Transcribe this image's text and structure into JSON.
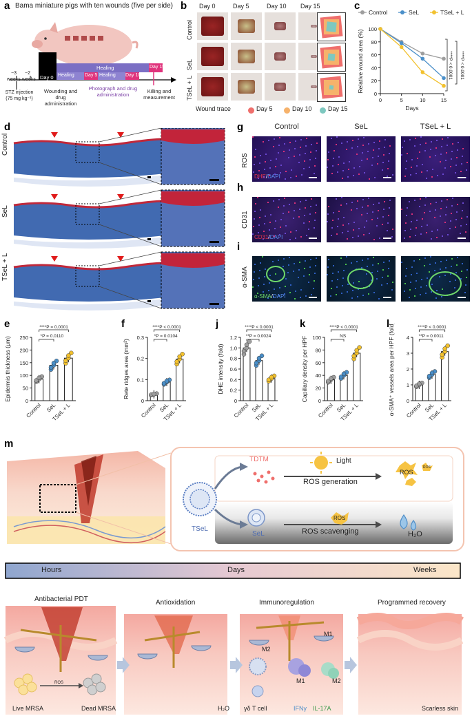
{
  "panel_letters": {
    "a": "a",
    "b": "b",
    "c": "c",
    "d": "d",
    "e": "e",
    "f": "f",
    "g": "g",
    "h": "h",
    "i": "i",
    "j": "j",
    "k": "k",
    "l": "l",
    "m": "m"
  },
  "panel_a": {
    "title": "Bama miniature pigs with ten wounds (five per side)",
    "week_minus3": "−3",
    "weeks_label1": "weeks",
    "week_minus2": "−2",
    "weeks_label2": "weeks",
    "day0": "Day 0",
    "healing": "Healing",
    "day5": "Day 5",
    "day10": "Day 10",
    "day15": "Day 15",
    "stz": "STZ injection (75 mg kg⁻¹)",
    "wounding": "Wounding and drug administration",
    "photo": "Photograph and drug administration",
    "killing": "Killing and measurement"
  },
  "panel_b": {
    "days": [
      "Day 0",
      "Day 5",
      "Day 10",
      "Day 15"
    ],
    "rows": [
      "Control",
      "SeL",
      "TSeL + L"
    ],
    "legend_title": "Wound trace",
    "legend": [
      {
        "label": "Day 5",
        "color": "#ef6f6c"
      },
      {
        "label": "Day 10",
        "color": "#f6b26b"
      },
      {
        "label": "Day 15",
        "color": "#7ec8c0"
      }
    ]
  },
  "panel_c": {
    "legend": [
      "Control",
      "SeL",
      "TSeL + L"
    ],
    "colors": [
      "#9e9e9e",
      "#4a8fc9",
      "#f2c12e"
    ],
    "ylabel": "Relative wound area (%)",
    "xlabel": "Days",
    "p1": "****P < 0.0001",
    "p2": "****P < 0.0001",
    "yticks": [
      "0",
      "20",
      "40",
      "60",
      "80",
      "100"
    ],
    "xticks": [
      "0",
      "5",
      "10",
      "15"
    ]
  },
  "chart_data": [
    {
      "type": "line",
      "title": "Relative wound area",
      "xlabel": "Days",
      "ylabel": "Relative wound area (%)",
      "x": [
        0,
        5,
        10,
        15
      ],
      "ylim": [
        0,
        100
      ],
      "series": [
        {
          "name": "Control",
          "values": [
            100,
            80,
            62,
            54
          ]
        },
        {
          "name": "SeL",
          "values": [
            100,
            78,
            54,
            24
          ]
        },
        {
          "name": "TSeL + L",
          "values": [
            100,
            72,
            33,
            12
          ]
        }
      ]
    },
    {
      "type": "bar",
      "ylabel": "Epidermis thickness (μm)",
      "categories": [
        "Control",
        "SeL",
        "TSeL + L"
      ],
      "values": [
        85,
        140,
        168
      ],
      "ylim": [
        0,
        250
      ],
      "yticks": [
        "0",
        "50",
        "100",
        "150",
        "200",
        "250"
      ],
      "p_top": "****P = 0.0001",
      "p_bottom": "*P = 0.0110"
    },
    {
      "type": "bar",
      "ylabel": "Rete ridges area (mm²)",
      "categories": [
        "Control",
        "SeL",
        "TSeL + L"
      ],
      "values": [
        0.03,
        0.088,
        0.197
      ],
      "ylim": [
        0,
        0.3
      ],
      "yticks": [
        "0",
        "0.1",
        "0.2",
        "0.3"
      ],
      "p_top": "****P < 0.0001",
      "p_bottom": "*P = 0.0104"
    },
    {
      "type": "bar",
      "ylabel": "DHE intensity (fold)",
      "categories": [
        "Control",
        "SeL",
        "TSeL + L"
      ],
      "values": [
        1.0,
        0.76,
        0.42
      ],
      "ylim": [
        0,
        1.2
      ],
      "yticks": [
        "0",
        "0.2",
        "0.4",
        "0.6",
        "0.8",
        "1.0",
        "1.2"
      ],
      "p_top": "****P < 0.0001",
      "p_bottom": "**P = 0.0024"
    },
    {
      "type": "bar",
      "ylabel": "Capillary density per HPF",
      "categories": [
        "Control",
        "SeL",
        "TSeL + L"
      ],
      "values": [
        33,
        40,
        75
      ],
      "ylim": [
        0,
        100
      ],
      "yticks": [
        "0",
        "20",
        "40",
        "60",
        "80",
        "100"
      ],
      "p_top": "****P < 0.0001",
      "p_bottom": "NS"
    },
    {
      "type": "bar",
      "ylabel": "α-SMA⁺ vessels area per HPF (fold)",
      "categories": [
        "Control",
        "SeL",
        "TSeL + L"
      ],
      "values": [
        1.0,
        1.65,
        3.1
      ],
      "ylim": [
        0,
        4
      ],
      "yticks": [
        "0",
        "1",
        "2",
        "3",
        "4"
      ],
      "p_top": "****P < 0.0001",
      "p_bottom": "**P = 0.0011"
    }
  ],
  "panel_d": {
    "rows": [
      "Control",
      "SeL",
      "TSeL + L"
    ]
  },
  "panel_ghi": {
    "cols": [
      "Control",
      "SeL",
      "TSeL + L"
    ],
    "rows": [
      {
        "label": "ROS",
        "stain_a": "DHE",
        "sep": "/",
        "stain_b": "DAPI",
        "color_a": "#e0344c"
      },
      {
        "label": "CD31",
        "stain_a": "CD31",
        "sep": "/",
        "stain_b": "DAPI",
        "color_a": "#e0344c"
      },
      {
        "label": "α-SMA",
        "stain_a": "α-SMA",
        "sep": "/",
        "stain_b": "DAPI",
        "color_a": "#6fd96a"
      }
    ]
  },
  "panel_m": {
    "tdtm": "TDTM",
    "light": "Light",
    "ros": "ROS",
    "ros_small": "ROS",
    "ros_generation": "ROS generation",
    "ros_scavenging": "ROS scavenging",
    "tsel": "TSeL",
    "sel": "SeL",
    "h2o": "H₂O",
    "timeline": [
      "Hours",
      "Days",
      "Weeks"
    ],
    "stages": [
      "Antibacterial PDT",
      "Antioxidation",
      "Immunoregulation",
      "Programmed recovery"
    ],
    "live_mrsa": "Live MRSA",
    "dead_mrsa": "Dead MRSA",
    "ros_mid": "ROS",
    "h2o_b": "H₂O",
    "m1": "M1",
    "m2": "M2",
    "m1b": "M1",
    "m2b": "M2",
    "gd": "γδ T cell",
    "ifng": "IFNγ",
    "il17": "IL-17A",
    "scarless": "Scarless skin"
  }
}
